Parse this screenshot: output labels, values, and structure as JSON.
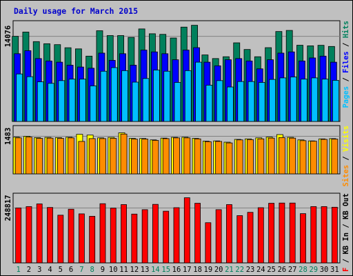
{
  "chart_data": {
    "type": "bar",
    "title": "Daily usage for March 2015",
    "categories": [
      "1",
      "2",
      "3",
      "4",
      "5",
      "6",
      "7",
      "8",
      "9",
      "10",
      "11",
      "12",
      "13",
      "14",
      "15",
      "16",
      "17",
      "18",
      "19",
      "20",
      "21",
      "22",
      "23",
      "24",
      "25",
      "26",
      "27",
      "28",
      "29",
      "30",
      "31"
    ],
    "weekend_days": [
      "1",
      "7",
      "8",
      "14",
      "15",
      "21",
      "22",
      "28",
      "29"
    ],
    "panels": [
      {
        "id": "hits",
        "tick_label": "14076",
        "tick_value": 14076,
        "ymax": 16200,
        "legend": [
          "Pages",
          "Files",
          "Hits"
        ],
        "legend_separator": " / ",
        "series": [
          {
            "name": "Hits",
            "color": "#00805c",
            "values": [
              14076,
              14780,
              13200,
              12850,
              12700,
              12190,
              12000,
              10800,
              15000,
              14200,
              14200,
              13900,
              15300,
              14500,
              14400,
              13800,
              15600,
              15900,
              11000,
              10400,
              10700,
              13000,
              11900,
              10700,
              12200,
              14870,
              15050,
              12600,
              12500,
              12590,
              12400
            ]
          },
          {
            "name": "Files",
            "color": "#0000ff",
            "values": [
              11200,
              11700,
              10400,
              10000,
              9800,
              9300,
              9000,
              8800,
              11300,
              10100,
              11200,
              9300,
              11800,
              11500,
              11200,
              10200,
              11800,
              12200,
              9800,
              9200,
              10200,
              10400,
              10000,
              8700,
              10200,
              11300,
              11500,
              10000,
              10500,
              10800,
              9800
            ]
          },
          {
            "name": "Pages",
            "color": "#00bfff",
            "values": [
              7850,
              7400,
              6550,
              6300,
              6750,
              7000,
              7000,
              5880,
              8300,
              8900,
              8400,
              6500,
              7100,
              8500,
              8300,
              6450,
              8400,
              9800,
              6000,
              6750,
              5700,
              6600,
              6600,
              6450,
              6950,
              7200,
              7350,
              7000,
              7200,
              7000,
              6800
            ]
          }
        ]
      },
      {
        "id": "visits",
        "tick_label": "1483",
        "tick_value": 1483,
        "ymax": 1795,
        "legend": [
          "Sites",
          "Visits"
        ],
        "legend_separator": " / ",
        "series": [
          {
            "name": "Visits",
            "color": "#ffff00",
            "values": [
              1450,
              1483,
              1430,
              1440,
              1430,
              1445,
              1560,
              1530,
              1420,
              1440,
              1620,
              1400,
              1395,
              1340,
              1410,
              1440,
              1445,
              1400,
              1290,
              1300,
              1250,
              1360,
              1380,
              1420,
              1450,
              1550,
              1440,
              1340,
              1300,
              1380,
              1390
            ]
          },
          {
            "name": "Sites",
            "color": "#ff8c00",
            "values": [
              1420,
              1450,
              1400,
              1410,
              1400,
              1420,
              1280,
              1390,
              1390,
              1400,
              1570,
              1370,
              1370,
              1320,
              1390,
              1420,
              1420,
              1380,
              1270,
              1280,
              1220,
              1340,
              1350,
              1380,
              1410,
              1430,
              1410,
              1310,
              1290,
              1360,
              1370
            ]
          }
        ]
      },
      {
        "id": "kbytes",
        "tick_label": "248817",
        "tick_value": 248817,
        "ymax": 303000,
        "legend": [
          "KB F",
          "KB In",
          "KB Out"
        ],
        "legend_separator": " / ",
        "series": [
          {
            "name": "KB F",
            "color": "#ff0000",
            "values": [
              248817,
              255000,
              267000,
              251000,
              216000,
              243000,
              222000,
              211000,
              268000,
              248000,
              264000,
              221000,
              241000,
              265000,
              234000,
              250000,
              295000,
              270000,
              182000,
              241000,
              264000,
              214000,
              229000,
              250000,
              270000,
              271000,
              271000,
              223000,
              255000,
              255000,
              252000
            ]
          }
        ]
      }
    ],
    "grid": true,
    "legend_position": "right"
  }
}
